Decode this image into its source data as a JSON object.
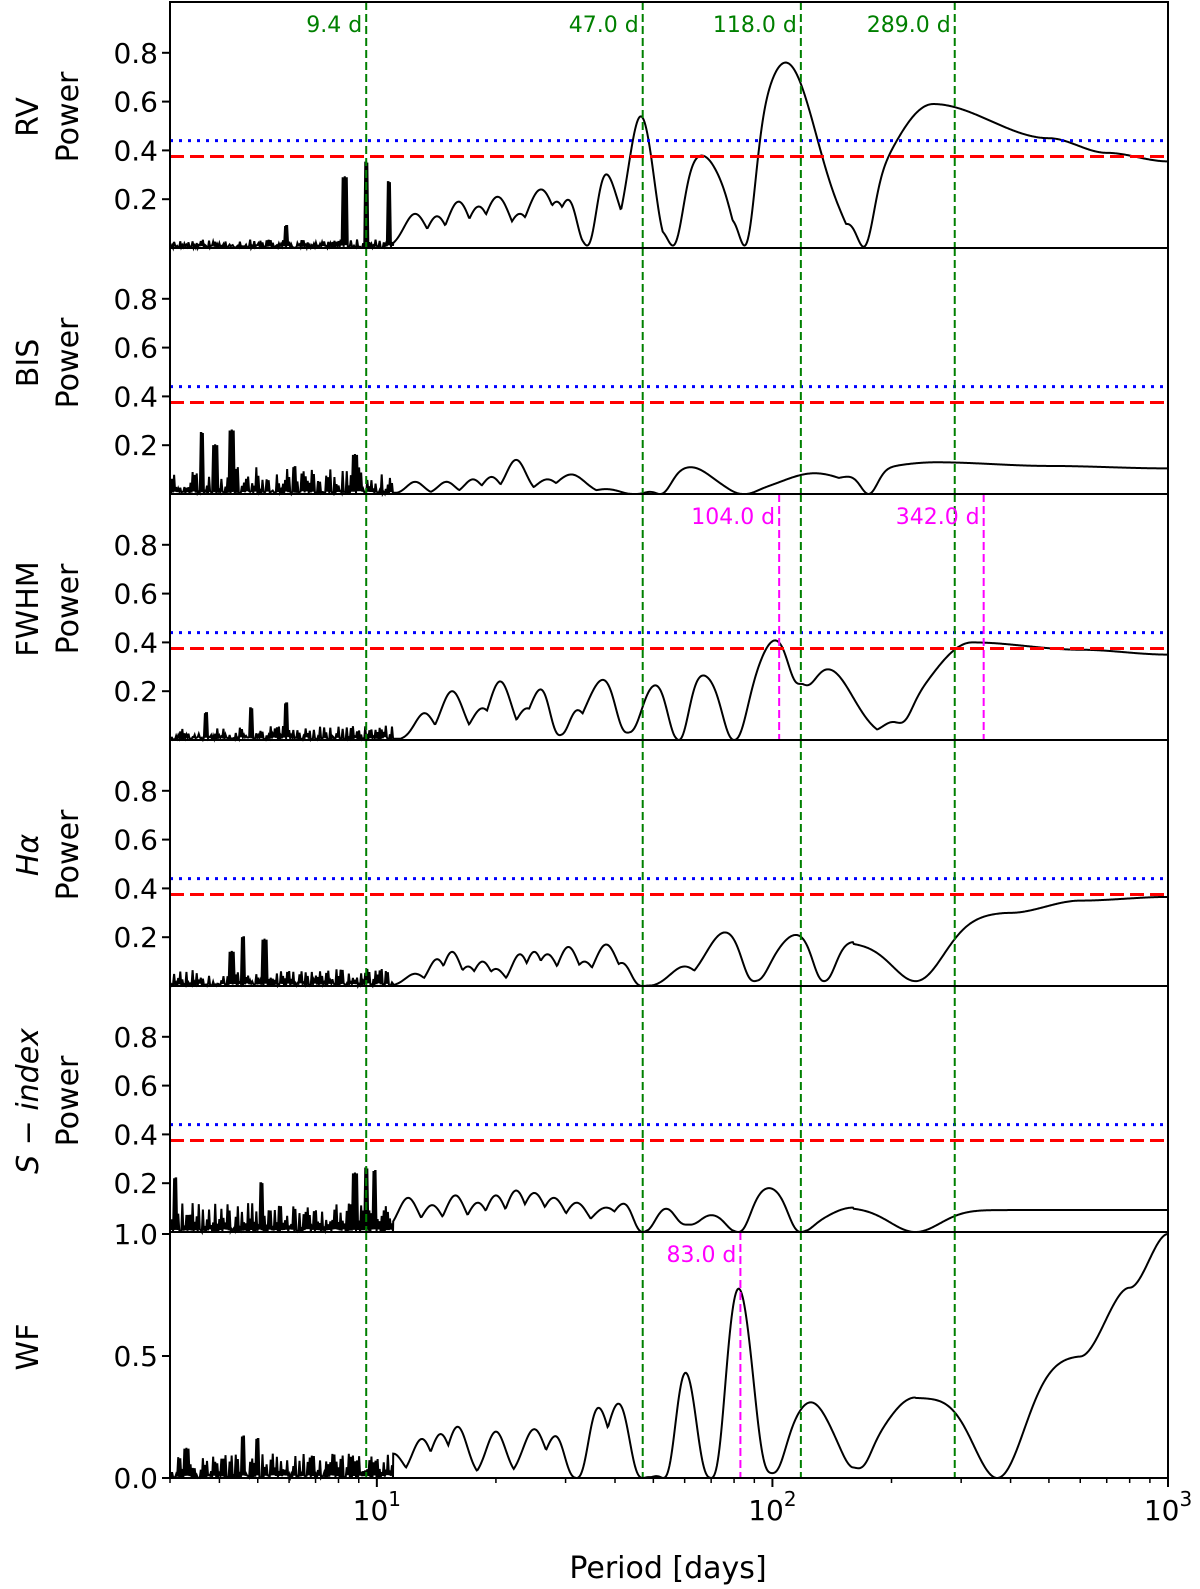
{
  "chart_data": {
    "type": "line",
    "xlabel": "Period [days]",
    "xscale": "log",
    "xlim": [
      3,
      1000
    ],
    "x_ticks": [
      {
        "value": 10,
        "base": "10",
        "exp": "1"
      },
      {
        "value": 100,
        "base": "10",
        "exp": "2"
      },
      {
        "value": 1000,
        "base": "10",
        "exp": "3"
      }
    ],
    "colors": {
      "signal": "#000000",
      "threshold_dotted": "#0000ff",
      "threshold_dashed": "#ff0000",
      "rv_period_lines": "#008000",
      "activity_period_lines": "#ff00ff"
    },
    "vertical_lines": [
      9.4,
      47.0,
      118.0,
      289.0
    ],
    "panels": [
      {
        "id": "rv",
        "ylabel_main": "RV",
        "ylabel_sub": "Power",
        "ylim": [
          0,
          1
        ],
        "yticks": [
          {
            "v": 0.2,
            "label": "0.2"
          },
          {
            "v": 0.4,
            "label": "0.4"
          },
          {
            "v": 0.6,
            "label": "0.6"
          },
          {
            "v": 0.8,
            "label": "0.8"
          }
        ],
        "threshold_dotted": 0.44,
        "threshold_dashed": 0.375,
        "annotations": [
          {
            "period": 9.4,
            "label": "9.4 d",
            "color": "green",
            "show_line": false
          },
          {
            "period": 47.0,
            "label": "47.0 d",
            "color": "green",
            "show_line": false
          },
          {
            "period": 118.0,
            "label": "118.0 d",
            "color": "green",
            "show_line": false
          },
          {
            "period": 289.0,
            "label": "289.0 d",
            "color": "green",
            "show_line": false
          }
        ],
        "noise": {
          "seed": 11,
          "lowAmp": 0.035,
          "peaks": [
            [
              8.3,
              0.29
            ],
            [
              9.4,
              0.35
            ],
            [
              10.7,
              0.27
            ],
            [
              5.9,
              0.09
            ]
          ]
        },
        "peaks": [
          [
            12.5,
            0.14,
            0.04
          ],
          [
            14.2,
            0.13,
            0.035
          ],
          [
            16.1,
            0.19,
            0.04
          ],
          [
            18.1,
            0.17,
            0.04
          ],
          [
            20.2,
            0.21,
            0.045
          ],
          [
            23.0,
            0.14,
            0.04
          ],
          [
            26.0,
            0.24,
            0.05
          ],
          [
            28.5,
            0.19,
            0.04
          ],
          [
            31.0,
            0.22,
            0.045
          ],
          [
            37.0,
            0.34,
            0.055
          ],
          [
            46.5,
            0.54,
            0.045
          ],
          [
            66.0,
            0.38,
            0.09
          ],
          [
            108.0,
            0.76,
            0.11
          ],
          [
            255.0,
            0.59,
            0.17
          ]
        ],
        "dips": [
          [
            34.0,
            0.01
          ],
          [
            56.0,
            0.01
          ],
          [
            85.0,
            0.01
          ],
          [
            170.0,
            0.005
          ]
        ],
        "tail": [
          [
            500,
            0.45
          ],
          [
            700,
            0.39
          ],
          [
            1000,
            0.355
          ]
        ]
      },
      {
        "id": "bis",
        "ylabel_main": "BIS",
        "ylabel_sub": "Power",
        "ylim": [
          0,
          1
        ],
        "yticks": [
          {
            "v": 0.2,
            "label": "0.2"
          },
          {
            "v": 0.4,
            "label": "0.4"
          },
          {
            "v": 0.6,
            "label": "0.6"
          },
          {
            "v": 0.8,
            "label": "0.8"
          }
        ],
        "threshold_dotted": 0.44,
        "threshold_dashed": 0.375,
        "annotations": [],
        "noise": {
          "seed": 23,
          "lowAmp": 0.11,
          "peaks": [
            [
              3.6,
              0.25
            ],
            [
              4.3,
              0.26
            ],
            [
              3.9,
              0.2
            ],
            [
              8.8,
              0.16
            ],
            [
              6.2,
              0.11
            ]
          ]
        },
        "peaks": [
          [
            12.5,
            0.05,
            0.03
          ],
          [
            15.0,
            0.05,
            0.03
          ],
          [
            17.5,
            0.06,
            0.03
          ],
          [
            19.5,
            0.07,
            0.03
          ],
          [
            22.5,
            0.14,
            0.035
          ],
          [
            27.0,
            0.06,
            0.04
          ],
          [
            31.0,
            0.08,
            0.05
          ],
          [
            38.0,
            0.02,
            0.05
          ],
          [
            62.0,
            0.11,
            0.08
          ],
          [
            128.0,
            0.085,
            0.12
          ],
          [
            260.0,
            0.13,
            0.3
          ]
        ],
        "dips": [
          [
            45.0,
            0.0
          ],
          [
            52.0,
            0.0
          ],
          [
            85.0,
            0.0
          ],
          [
            175.0,
            0.0
          ]
        ],
        "tail": [
          [
            500,
            0.115
          ],
          [
            1000,
            0.105
          ]
        ]
      },
      {
        "id": "fwhm",
        "ylabel_main": "FWHM",
        "ylabel_sub": "Power",
        "ylim": [
          0,
          1
        ],
        "yticks": [
          {
            "v": 0.2,
            "label": "0.2"
          },
          {
            "v": 0.4,
            "label": "0.4"
          },
          {
            "v": 0.6,
            "label": "0.6"
          },
          {
            "v": 0.8,
            "label": "0.8"
          }
        ],
        "threshold_dotted": 0.44,
        "threshold_dashed": 0.375,
        "annotations": [
          {
            "period": 104.0,
            "label": "104.0 d",
            "color": "magenta",
            "show_line": true
          },
          {
            "period": 342.0,
            "label": "342.0 d",
            "color": "magenta",
            "show_line": true
          }
        ],
        "noise": {
          "seed": 37,
          "lowAmp": 0.06,
          "peaks": [
            [
              5.9,
              0.15
            ],
            [
              4.8,
              0.13
            ],
            [
              3.7,
              0.11
            ]
          ]
        },
        "peaks": [
          [
            13.2,
            0.11,
            0.035
          ],
          [
            15.5,
            0.2,
            0.04
          ],
          [
            18.5,
            0.13,
            0.04
          ],
          [
            20.5,
            0.24,
            0.04
          ],
          [
            24.0,
            0.13,
            0.04
          ],
          [
            26.5,
            0.23,
            0.05
          ],
          [
            31.5,
            0.14,
            0.045
          ],
          [
            37.5,
            0.25,
            0.06
          ],
          [
            51.0,
            0.23,
            0.06
          ],
          [
            66.0,
            0.27,
            0.08
          ],
          [
            102.0,
            0.41,
            0.08
          ],
          [
            138.0,
            0.29,
            0.09
          ],
          [
            320.0,
            0.4,
            0.16
          ]
        ],
        "dips": [
          [
            29.0,
            0.02
          ],
          [
            43.0,
            0.03
          ],
          [
            58.0,
            0.0
          ],
          [
            80.0,
            0.0
          ],
          [
            118.0,
            0.23
          ],
          [
            210.0,
            0.07
          ]
        ],
        "tail": [
          [
            600,
            0.37
          ],
          [
            1000,
            0.35
          ]
        ]
      },
      {
        "id": "halpha",
        "ylabel_main": "Hα",
        "ylabel_sub": "Power",
        "ylim": [
          0,
          1
        ],
        "yticks": [
          {
            "v": 0.2,
            "label": "0.2"
          },
          {
            "v": 0.4,
            "label": "0.4"
          },
          {
            "v": 0.6,
            "label": "0.6"
          },
          {
            "v": 0.8,
            "label": "0.8"
          }
        ],
        "threshold_dotted": 0.44,
        "threshold_dashed": 0.375,
        "annotations": [],
        "noise": {
          "seed": 53,
          "lowAmp": 0.07,
          "peaks": [
            [
              4.6,
              0.2
            ],
            [
              5.2,
              0.19
            ],
            [
              4.3,
              0.14
            ]
          ]
        },
        "peaks": [
          [
            12.5,
            0.05,
            0.035
          ],
          [
            14.2,
            0.11,
            0.03
          ],
          [
            15.5,
            0.14,
            0.03
          ],
          [
            17.0,
            0.08,
            0.03
          ],
          [
            18.5,
            0.1,
            0.03
          ],
          [
            20.0,
            0.07,
            0.03
          ],
          [
            23.0,
            0.13,
            0.03
          ],
          [
            25.0,
            0.14,
            0.03
          ],
          [
            27.0,
            0.13,
            0.035
          ],
          [
            30.5,
            0.16,
            0.035
          ],
          [
            33.5,
            0.1,
            0.035
          ],
          [
            38.0,
            0.17,
            0.04
          ],
          [
            42.0,
            0.1,
            0.04
          ],
          [
            60.0,
            0.08,
            0.05
          ],
          [
            76.0,
            0.22,
            0.07
          ],
          [
            115.0,
            0.21,
            0.08
          ],
          [
            160.0,
            0.18,
            0.08
          ]
        ],
        "dips": [
          [
            47.0,
            0.0
          ],
          [
            90.0,
            0.02
          ],
          [
            135.0,
            0.02
          ],
          [
            230.0,
            0.02
          ]
        ],
        "tail": [
          [
            400,
            0.3
          ],
          [
            600,
            0.35
          ],
          [
            1000,
            0.365
          ]
        ]
      },
      {
        "id": "sindex",
        "ylabel_main": "S − index",
        "ylabel_sub": "Power",
        "ylim": [
          0,
          1
        ],
        "yticks": [
          {
            "v": 0.2,
            "label": "0.2"
          },
          {
            "v": 0.4,
            "label": "0.4"
          },
          {
            "v": 0.6,
            "label": "0.6"
          },
          {
            "v": 0.8,
            "label": "0.8"
          }
        ],
        "threshold_dotted": 0.44,
        "threshold_dashed": 0.375,
        "annotations": [],
        "noise": {
          "seed": 71,
          "lowAmp": 0.12,
          "peaks": [
            [
              8.8,
              0.24
            ],
            [
              9.4,
              0.26
            ],
            [
              9.9,
              0.25
            ],
            [
              5.1,
              0.2
            ],
            [
              3.1,
              0.22
            ]
          ]
        },
        "peaks": [
          [
            12.0,
            0.14,
            0.035
          ],
          [
            13.8,
            0.11,
            0.035
          ],
          [
            15.8,
            0.15,
            0.035
          ],
          [
            18.0,
            0.12,
            0.035
          ],
          [
            20.0,
            0.15,
            0.035
          ],
          [
            22.5,
            0.17,
            0.035
          ],
          [
            25.0,
            0.16,
            0.04
          ],
          [
            28.0,
            0.14,
            0.04
          ],
          [
            32.0,
            0.12,
            0.04
          ],
          [
            38.0,
            0.1,
            0.05
          ],
          [
            43.0,
            0.13,
            0.05
          ],
          [
            54.0,
            0.1,
            0.05
          ],
          [
            70.0,
            0.07,
            0.06
          ],
          [
            98.0,
            0.18,
            0.07
          ],
          [
            160.0,
            0.1,
            0.1
          ]
        ],
        "dips": [
          [
            47.0,
            0.0
          ],
          [
            61.0,
            0.03
          ],
          [
            82.0,
            0.0
          ],
          [
            118.0,
            0.0
          ],
          [
            230.0,
            0.0
          ]
        ],
        "tail": [
          [
            400,
            0.09
          ],
          [
            1000,
            0.09
          ]
        ]
      },
      {
        "id": "wf",
        "ylabel_main": "WF",
        "ylabel_sub": "",
        "ylim": [
          0,
          1
        ],
        "yticks": [
          {
            "v": 0.0,
            "label": "0.0"
          },
          {
            "v": 0.5,
            "label": "0.5"
          },
          {
            "v": 1.0,
            "label": "1.0"
          }
        ],
        "threshold_dotted": null,
        "threshold_dashed": null,
        "annotations": [
          {
            "period": 83.0,
            "label": "83.0 d",
            "color": "magenta",
            "show_line": true
          }
        ],
        "noise": {
          "seed": 97,
          "lowAmp": 0.1,
          "peaks": [
            [
              4.6,
              0.17
            ],
            [
              5.0,
              0.16
            ],
            [
              3.3,
              0.12
            ]
          ]
        },
        "peaks": [
          [
            11.0,
            0.1,
            0.035
          ],
          [
            13.0,
            0.16,
            0.035
          ],
          [
            14.5,
            0.18,
            0.035
          ],
          [
            16.0,
            0.21,
            0.035
          ],
          [
            20.0,
            0.19,
            0.035
          ],
          [
            25.0,
            0.2,
            0.04
          ],
          [
            28.5,
            0.18,
            0.04
          ],
          [
            36.0,
            0.3,
            0.045
          ],
          [
            41.0,
            0.31,
            0.045
          ],
          [
            60.0,
            0.45,
            0.045
          ],
          [
            82.0,
            0.78,
            0.05
          ],
          [
            125.0,
            0.31,
            0.08
          ],
          [
            230.0,
            0.33,
            0.12
          ]
        ],
        "dips": [
          [
            32.0,
            0.0
          ],
          [
            47.0,
            0.0
          ],
          [
            53.0,
            0.0
          ],
          [
            70.0,
            0.0
          ],
          [
            100.0,
            0.02
          ],
          [
            165.0,
            0.04
          ],
          [
            370.0,
            0.0
          ]
        ],
        "tail": [
          [
            600,
            0.5
          ],
          [
            800,
            0.78
          ],
          [
            1000,
            1.0
          ]
        ]
      }
    ]
  }
}
